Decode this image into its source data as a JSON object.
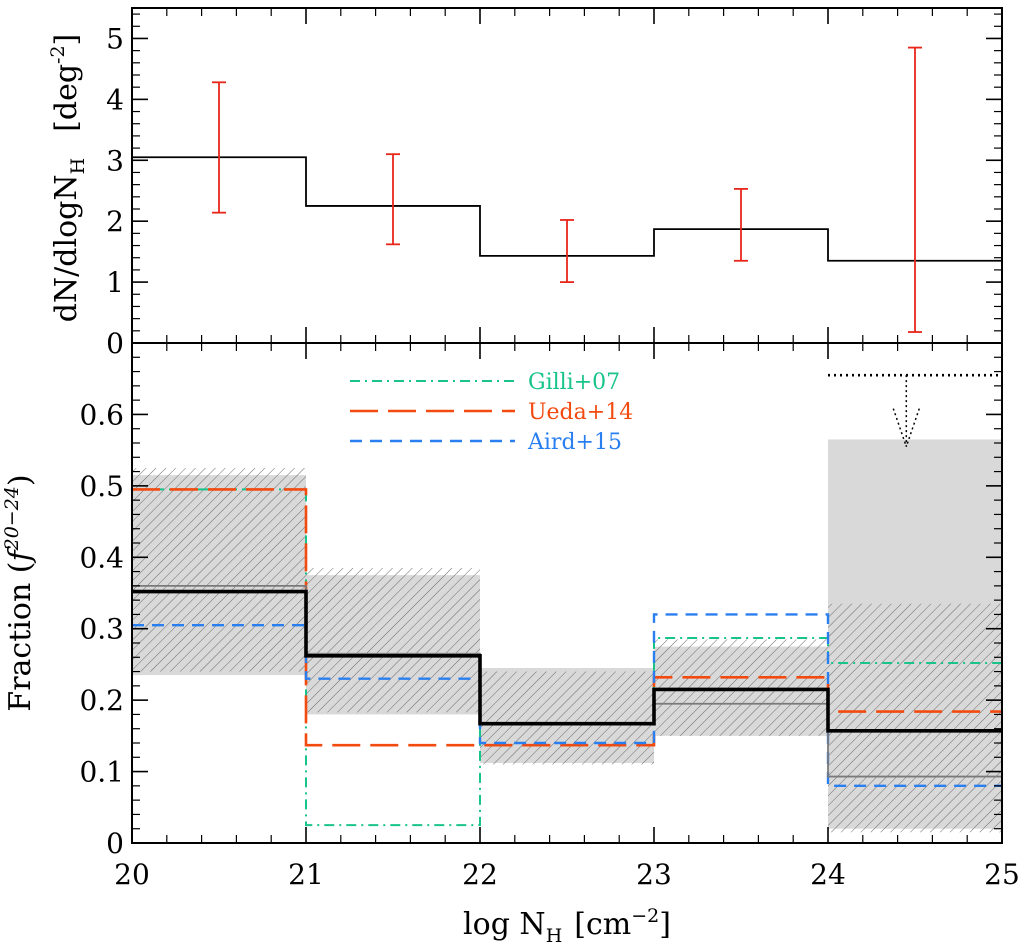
{
  "chart_data": [
    {
      "type": "step-histogram",
      "panel": "top",
      "ylabel_main": "dN/dlogN",
      "ylabel_sub": "H",
      "ylabel_unit_base": "[deg",
      "ylabel_unit_sup": "-2",
      "ylabel_unit_close": "]",
      "ylim": [
        0,
        5.5
      ],
      "yticks": [
        "0",
        "1",
        "2",
        "3",
        "4",
        "5"
      ],
      "bins": [
        [
          20,
          21
        ],
        [
          21,
          22
        ],
        [
          22,
          23
        ],
        [
          23,
          24
        ],
        [
          24,
          25
        ]
      ],
      "values": [
        3.05,
        2.25,
        1.43,
        1.87,
        1.35
      ],
      "points_x": [
        20.5,
        21.5,
        22.5,
        23.5,
        24.5
      ],
      "err_low": [
        2.14,
        1.62,
        1.0,
        1.35,
        0.18
      ],
      "err_high": [
        4.28,
        3.1,
        2.02,
        2.53,
        4.85
      ],
      "colors": {
        "line": "#000000",
        "errorbar": "#e8261a"
      }
    },
    {
      "type": "step-histogram",
      "panel": "bottom",
      "ylabel_main": "Fraction (",
      "ylabel_italic": "f",
      "ylabel_sup": "20−24",
      "ylabel_close": ")",
      "xlabel_main": "log N",
      "xlabel_sub": "H",
      "xlabel_unit_base": "[cm",
      "xlabel_unit_sup": "−2",
      "xlabel_unit_close": "]",
      "xlim": [
        20,
        25
      ],
      "xticks": [
        "20",
        "21",
        "22",
        "23",
        "24",
        "25"
      ],
      "ylim": [
        0,
        0.7
      ],
      "yticks": [
        "0",
        "0.1",
        "0.2",
        "0.3",
        "0.4",
        "0.5",
        "0.6"
      ],
      "bins": [
        [
          20,
          21
        ],
        [
          21,
          22
        ],
        [
          22,
          23
        ],
        [
          23,
          24
        ],
        [
          24,
          25
        ]
      ],
      "gray_band": [
        [
          0.235,
          0.515
        ],
        [
          0.18,
          0.375
        ],
        [
          0.112,
          0.245
        ],
        [
          0.15,
          0.275
        ],
        [
          0.02,
          0.565
        ]
      ],
      "hatched_band": [
        [
          0.24,
          0.525
        ],
        [
          0.183,
          0.385
        ],
        [
          0.11,
          0.24
        ],
        [
          0.15,
          0.285
        ],
        [
          0.015,
          0.335
        ]
      ],
      "gray_line": [
        0.36,
        0.265,
        0.167,
        0.195,
        0.093
      ],
      "best_fit": [
        0.352,
        0.262,
        0.167,
        0.215,
        0.157
      ],
      "upper_limit": {
        "x_start": 24,
        "x_end": 25,
        "y": 0.655,
        "arrow_x": 24.45,
        "arrow_to": 0.555
      },
      "series": [
        {
          "name": "Gilli+07",
          "values": [
            0.495,
            0.025,
            0.167,
            0.287,
            0.252
          ],
          "color": "#19c48a"
        },
        {
          "name": "Ueda+14",
          "values": [
            0.495,
            0.137,
            0.137,
            0.232,
            0.184
          ],
          "color": "#f24a0f"
        },
        {
          "name": "Aird+15",
          "values": [
            0.305,
            0.23,
            0.14,
            0.32,
            0.08
          ],
          "color": "#2a7ff0"
        }
      ],
      "legend_position": "top-center",
      "colors": {
        "band": "#d9d9d9",
        "hatch": "#6b6b6b",
        "gray_line": "#7a7a7a",
        "best_fit": "#000000"
      }
    }
  ]
}
